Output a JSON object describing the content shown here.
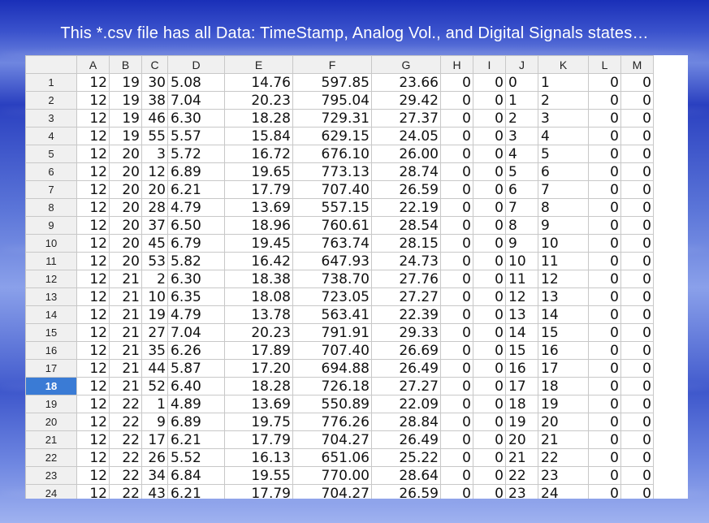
{
  "title": "This *.csv file has all Data: TimeStamp, Analog Vol., and Digital Signals states…",
  "active_row": 18,
  "columns": [
    "A",
    "B",
    "C",
    "D",
    "E",
    "F",
    "G",
    "H",
    "I",
    "J",
    "K",
    "L",
    "M"
  ],
  "rows": [
    [
      "1",
      "12",
      "19",
      "30",
      "5.08",
      "14.76",
      "597.85",
      "23.66",
      "0",
      "0",
      "0",
      "1",
      "0",
      "0"
    ],
    [
      "2",
      "12",
      "19",
      "38",
      "7.04",
      "20.23",
      "795.04",
      "29.42",
      "0",
      "0",
      "1",
      "2",
      "0",
      "0"
    ],
    [
      "3",
      "12",
      "19",
      "46",
      "6.30",
      "18.28",
      "729.31",
      "27.37",
      "0",
      "0",
      "2",
      "3",
      "0",
      "0"
    ],
    [
      "4",
      "12",
      "19",
      "55",
      "5.57",
      "15.84",
      "629.15",
      "24.05",
      "0",
      "0",
      "3",
      "4",
      "0",
      "0"
    ],
    [
      "5",
      "12",
      "20",
      "3",
      "5.72",
      "16.72",
      "676.10",
      "26.00",
      "0",
      "0",
      "4",
      "5",
      "0",
      "0"
    ],
    [
      "6",
      "12",
      "20",
      "12",
      "6.89",
      "19.65",
      "773.13",
      "28.74",
      "0",
      "0",
      "5",
      "6",
      "0",
      "0"
    ],
    [
      "7",
      "12",
      "20",
      "20",
      "6.21",
      "17.79",
      "707.40",
      "26.59",
      "0",
      "0",
      "6",
      "7",
      "0",
      "0"
    ],
    [
      "8",
      "12",
      "20",
      "28",
      "4.79",
      "13.69",
      "557.15",
      "22.19",
      "0",
      "0",
      "7",
      "8",
      "0",
      "0"
    ],
    [
      "9",
      "12",
      "20",
      "37",
      "6.50",
      "18.96",
      "760.61",
      "28.54",
      "0",
      "0",
      "8",
      "9",
      "0",
      "0"
    ],
    [
      "10",
      "12",
      "20",
      "45",
      "6.79",
      "19.45",
      "763.74",
      "28.15",
      "0",
      "0",
      "9",
      "10",
      "0",
      "0"
    ],
    [
      "11",
      "12",
      "20",
      "53",
      "5.82",
      "16.42",
      "647.93",
      "24.73",
      "0",
      "0",
      "10",
      "11",
      "0",
      "0"
    ],
    [
      "12",
      "12",
      "21",
      "2",
      "6.30",
      "18.38",
      "738.70",
      "27.76",
      "0",
      "0",
      "11",
      "12",
      "0",
      "0"
    ],
    [
      "13",
      "12",
      "21",
      "10",
      "6.35",
      "18.08",
      "723.05",
      "27.27",
      "0",
      "0",
      "12",
      "13",
      "0",
      "0"
    ],
    [
      "14",
      "12",
      "21",
      "19",
      "4.79",
      "13.78",
      "563.41",
      "22.39",
      "0",
      "0",
      "13",
      "14",
      "0",
      "0"
    ],
    [
      "15",
      "12",
      "21",
      "27",
      "7.04",
      "20.23",
      "791.91",
      "29.33",
      "0",
      "0",
      "14",
      "15",
      "0",
      "0"
    ],
    [
      "16",
      "12",
      "21",
      "35",
      "6.26",
      "17.89",
      "707.40",
      "26.69",
      "0",
      "0",
      "15",
      "16",
      "0",
      "0"
    ],
    [
      "17",
      "12",
      "21",
      "44",
      "5.87",
      "17.20",
      "694.88",
      "26.49",
      "0",
      "0",
      "16",
      "17",
      "0",
      "0"
    ],
    [
      "18",
      "12",
      "21",
      "52",
      "6.40",
      "18.28",
      "726.18",
      "27.27",
      "0",
      "0",
      "17",
      "18",
      "0",
      "0"
    ],
    [
      "19",
      "12",
      "22",
      "1",
      "4.89",
      "13.69",
      "550.89",
      "22.09",
      "0",
      "0",
      "18",
      "19",
      "0",
      "0"
    ],
    [
      "20",
      "12",
      "22",
      "9",
      "6.89",
      "19.75",
      "776.26",
      "28.84",
      "0",
      "0",
      "19",
      "20",
      "0",
      "0"
    ],
    [
      "21",
      "12",
      "22",
      "17",
      "6.21",
      "17.79",
      "704.27",
      "26.49",
      "0",
      "0",
      "20",
      "21",
      "0",
      "0"
    ],
    [
      "22",
      "12",
      "22",
      "26",
      "5.52",
      "16.13",
      "651.06",
      "25.22",
      "0",
      "0",
      "21",
      "22",
      "0",
      "0"
    ],
    [
      "23",
      "12",
      "22",
      "34",
      "6.84",
      "19.55",
      "770.00",
      "28.64",
      "0",
      "0",
      "22",
      "23",
      "0",
      "0"
    ],
    [
      "24",
      "12",
      "22",
      "43",
      "6.21",
      "17.79",
      "704.27",
      "26.59",
      "0",
      "0",
      "23",
      "24",
      "0",
      "0"
    ]
  ]
}
